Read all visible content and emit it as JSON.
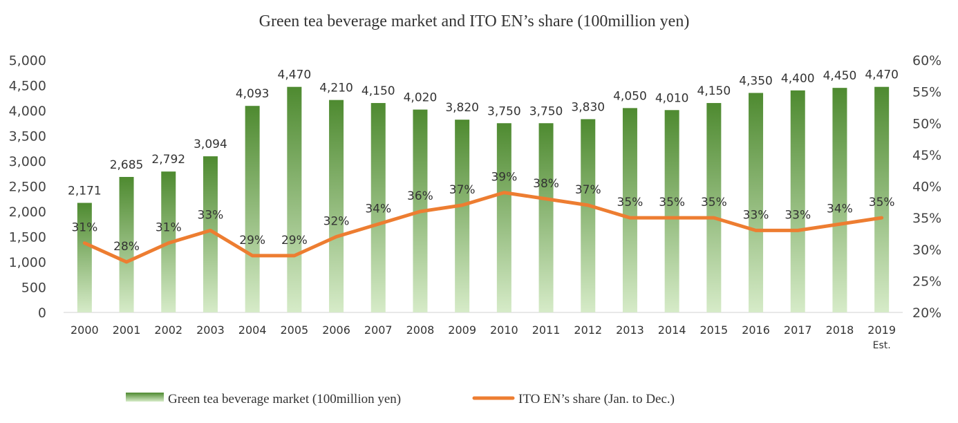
{
  "chart_data": {
    "type": "bar",
    "title": "Green tea beverage market and ITO EN’s share (100million yen)",
    "categories": [
      "2000",
      "2001",
      "2002",
      "2003",
      "2004",
      "2005",
      "2006",
      "2007",
      "2008",
      "2009",
      "2010",
      "2011",
      "2012",
      "2013",
      "2014",
      "2015",
      "2016",
      "2017",
      "2018",
      "2019"
    ],
    "category_sublabels": [
      "",
      "",
      "",
      "",
      "",
      "",
      "",
      "",
      "",
      "",
      "",
      "",
      "",
      "",
      "",
      "",
      "",
      "",
      "",
      "Est."
    ],
    "series": [
      {
        "name": "Green tea beverage market (100million yen)",
        "type": "bar",
        "axis": "left",
        "color": "#4e8a30",
        "values": [
          2171,
          2685,
          2792,
          3094,
          4093,
          4470,
          4210,
          4150,
          4020,
          3820,
          3750,
          3750,
          3830,
          4050,
          4010,
          4150,
          4350,
          4400,
          4450,
          4470
        ],
        "labels": [
          "2,171",
          "2,685",
          "2,792",
          "3,094",
          "4,093",
          "4,470",
          "4,210",
          "4,150",
          "4,020",
          "3,820",
          "3,750",
          "3,750",
          "3,830",
          "4,050",
          "4,010",
          "4,150",
          "4,350",
          "4,400",
          "4,450",
          "4,470"
        ]
      },
      {
        "name": "ITO EN’s share (Jan. to Dec.)",
        "type": "line",
        "axis": "right",
        "color": "#ed7d31",
        "values": [
          31,
          28,
          31,
          33,
          29,
          29,
          32,
          34,
          36,
          37,
          39,
          38,
          37,
          35,
          35,
          35,
          33,
          33,
          34,
          35
        ],
        "labels": [
          "31%",
          "28%",
          "31%",
          "33%",
          "29%",
          "29%",
          "32%",
          "34%",
          "36%",
          "37%",
          "39%",
          "38%",
          "37%",
          "35%",
          "35%",
          "35%",
          "33%",
          "33%",
          "34%",
          "35%"
        ]
      }
    ],
    "y_left": {
      "lim": [
        0,
        5000
      ],
      "ticks": [
        0,
        500,
        1000,
        1500,
        2000,
        2500,
        3000,
        3500,
        4000,
        4500,
        5000
      ],
      "tick_labels": [
        "0",
        "500",
        "1,000",
        "1,500",
        "2,000",
        "2,500",
        "3,000",
        "3,500",
        "4,000",
        "4,500",
        "5,000"
      ]
    },
    "y_right": {
      "lim": [
        20,
        60
      ],
      "ticks": [
        20,
        25,
        30,
        35,
        40,
        45,
        50,
        55,
        60
      ],
      "tick_labels": [
        "20%",
        "25%",
        "30%",
        "35%",
        "40%",
        "45%",
        "50%",
        "55%",
        "60%"
      ]
    },
    "grid": false,
    "legend_position": "bottom-center"
  }
}
